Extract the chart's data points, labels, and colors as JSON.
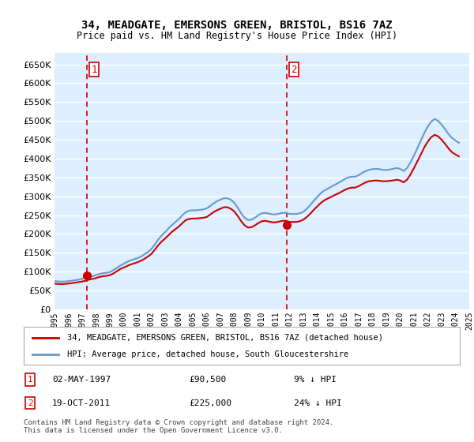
{
  "title": "34, MEADGATE, EMERSONS GREEN, BRISTOL, BS16 7AZ",
  "subtitle": "Price paid vs. HM Land Registry's House Price Index (HPI)",
  "ylabel_ticks": [
    "£0",
    "£50K",
    "£100K",
    "£150K",
    "£200K",
    "£250K",
    "£300K",
    "£350K",
    "£400K",
    "£450K",
    "£500K",
    "£550K",
    "£600K",
    "£650K"
  ],
  "ytick_values": [
    0,
    50000,
    100000,
    150000,
    200000,
    250000,
    300000,
    350000,
    400000,
    450000,
    500000,
    550000,
    600000,
    650000
  ],
  "ylim": [
    0,
    680000
  ],
  "sale1_year": 1997.33,
  "sale1_price": 90500,
  "sale1_label": "1",
  "sale2_year": 2011.8,
  "sale2_price": 225000,
  "sale2_label": "2",
  "legend_line1": "34, MEADGATE, EMERSONS GREEN, BRISTOL, BS16 7AZ (detached house)",
  "legend_line2": "HPI: Average price, detached house, South Gloucestershire",
  "table_row1": "1    02-MAY-1997         £90,500        9% ↓ HPI",
  "table_row2": "2    19-OCT-2011         £225,000      24% ↓ HPI",
  "footnote": "Contains HM Land Registry data © Crown copyright and database right 2024.\nThis data is licensed under the Open Government Licence v3.0.",
  "red_line_color": "#cc0000",
  "blue_line_color": "#6699cc",
  "background_color": "#ddeeff",
  "grid_color": "#ffffff",
  "hpi_data": {
    "years": [
      1995.0,
      1995.25,
      1995.5,
      1995.75,
      1996.0,
      1996.25,
      1996.5,
      1996.75,
      1997.0,
      1997.25,
      1997.5,
      1997.75,
      1998.0,
      1998.25,
      1998.5,
      1998.75,
      1999.0,
      1999.25,
      1999.5,
      1999.75,
      2000.0,
      2000.25,
      2000.5,
      2000.75,
      2001.0,
      2001.25,
      2001.5,
      2001.75,
      2002.0,
      2002.25,
      2002.5,
      2002.75,
      2003.0,
      2003.25,
      2003.5,
      2003.75,
      2004.0,
      2004.25,
      2004.5,
      2004.75,
      2005.0,
      2005.25,
      2005.5,
      2005.75,
      2006.0,
      2006.25,
      2006.5,
      2006.75,
      2007.0,
      2007.25,
      2007.5,
      2007.75,
      2008.0,
      2008.25,
      2008.5,
      2008.75,
      2009.0,
      2009.25,
      2009.5,
      2009.75,
      2010.0,
      2010.25,
      2010.5,
      2010.75,
      2011.0,
      2011.25,
      2011.5,
      2011.75,
      2012.0,
      2012.25,
      2012.5,
      2012.75,
      2013.0,
      2013.25,
      2013.5,
      2013.75,
      2014.0,
      2014.25,
      2014.5,
      2014.75,
      2015.0,
      2015.25,
      2015.5,
      2015.75,
      2016.0,
      2016.25,
      2016.5,
      2016.75,
      2017.0,
      2017.25,
      2017.5,
      2017.75,
      2018.0,
      2018.25,
      2018.5,
      2018.75,
      2019.0,
      2019.25,
      2019.5,
      2019.75,
      2020.0,
      2020.25,
      2020.5,
      2020.75,
      2021.0,
      2021.25,
      2021.5,
      2021.75,
      2022.0,
      2022.25,
      2022.5,
      2022.75,
      2023.0,
      2023.25,
      2023.5,
      2023.75,
      2024.0,
      2024.25
    ],
    "values": [
      75000,
      74000,
      73500,
      74000,
      75000,
      76000,
      77500,
      79000,
      81000,
      83000,
      86000,
      88000,
      91000,
      94000,
      96000,
      97000,
      99000,
      104000,
      110000,
      116000,
      121000,
      126000,
      130000,
      133000,
      136000,
      140000,
      146000,
      152000,
      160000,
      172000,
      185000,
      196000,
      205000,
      215000,
      224000,
      232000,
      240000,
      250000,
      258000,
      262000,
      263000,
      263000,
      264000,
      265000,
      268000,
      274000,
      281000,
      287000,
      291000,
      295000,
      295000,
      291000,
      283000,
      270000,
      255000,
      243000,
      237000,
      238000,
      243000,
      250000,
      255000,
      256000,
      254000,
      252000,
      252000,
      254000,
      256000,
      256000,
      253000,
      253000,
      253000,
      255000,
      259000,
      267000,
      277000,
      288000,
      298000,
      308000,
      315000,
      320000,
      325000,
      330000,
      335000,
      340000,
      346000,
      350000,
      352000,
      352000,
      356000,
      362000,
      367000,
      370000,
      372000,
      373000,
      372000,
      370000,
      370000,
      371000,
      373000,
      375000,
      373000,
      367000,
      375000,
      390000,
      408000,
      428000,
      448000,
      468000,
      485000,
      498000,
      505000,
      500000,
      490000,
      478000,
      465000,
      455000,
      448000,
      442000
    ]
  },
  "red_data": {
    "years": [
      1995.0,
      1995.25,
      1995.5,
      1995.75,
      1996.0,
      1996.25,
      1996.5,
      1996.75,
      1997.0,
      1997.25,
      1997.5,
      1997.75,
      1998.0,
      1998.25,
      1998.5,
      1998.75,
      1999.0,
      1999.25,
      1999.5,
      1999.75,
      2000.0,
      2000.25,
      2000.5,
      2000.75,
      2001.0,
      2001.25,
      2001.5,
      2001.75,
      2002.0,
      2002.25,
      2002.5,
      2002.75,
      2003.0,
      2003.25,
      2003.5,
      2003.75,
      2004.0,
      2004.25,
      2004.5,
      2004.75,
      2005.0,
      2005.25,
      2005.5,
      2005.75,
      2006.0,
      2006.25,
      2006.5,
      2006.75,
      2007.0,
      2007.25,
      2007.5,
      2007.75,
      2008.0,
      2008.25,
      2008.5,
      2008.75,
      2009.0,
      2009.25,
      2009.5,
      2009.75,
      2010.0,
      2010.25,
      2010.5,
      2010.75,
      2011.0,
      2011.25,
      2011.5,
      2011.75,
      2012.0,
      2012.25,
      2012.5,
      2012.75,
      2013.0,
      2013.25,
      2013.5,
      2013.75,
      2014.0,
      2014.25,
      2014.5,
      2014.75,
      2015.0,
      2015.25,
      2015.5,
      2015.75,
      2016.0,
      2016.25,
      2016.5,
      2016.75,
      2017.0,
      2017.25,
      2017.5,
      2017.75,
      2018.0,
      2018.25,
      2018.5,
      2018.75,
      2019.0,
      2019.25,
      2019.5,
      2019.75,
      2020.0,
      2020.25,
      2020.5,
      2020.75,
      2021.0,
      2021.25,
      2021.5,
      2021.75,
      2022.0,
      2022.25,
      2022.5,
      2022.75,
      2023.0,
      2023.25,
      2023.5,
      2023.75,
      2024.0,
      2024.25
    ],
    "values": [
      68000,
      67500,
      67000,
      67500,
      68500,
      69500,
      71000,
      72500,
      74000,
      76000,
      79000,
      81000,
      83000,
      86000,
      88000,
      89000,
      91000,
      95000,
      101000,
      107000,
      111000,
      115000,
      119000,
      122000,
      125000,
      129000,
      134000,
      140000,
      147000,
      158000,
      170000,
      180000,
      188000,
      197000,
      206000,
      213000,
      220000,
      229000,
      237000,
      240000,
      241000,
      241000,
      242000,
      243000,
      245000,
      251000,
      258000,
      263000,
      267000,
      271000,
      271000,
      267000,
      260000,
      248000,
      234000,
      223000,
      217000,
      218000,
      223000,
      229000,
      234000,
      235000,
      233000,
      231000,
      231000,
      233000,
      235000,
      235000,
      232000,
      232000,
      232000,
      234000,
      238000,
      245000,
      254000,
      264000,
      273000,
      282000,
      289000,
      294000,
      298000,
      303000,
      307000,
      312000,
      317000,
      321000,
      323000,
      323000,
      327000,
      332000,
      337000,
      340000,
      341000,
      342000,
      341000,
      340000,
      340000,
      341000,
      342000,
      344000,
      342000,
      337000,
      344000,
      358000,
      375000,
      393000,
      411000,
      430000,
      445000,
      457000,
      463000,
      459000,
      450000,
      439000,
      427000,
      417000,
      411000,
      406000
    ]
  },
  "xtick_years": [
    1995,
    1996,
    1997,
    1998,
    1999,
    2000,
    2001,
    2002,
    2003,
    2004,
    2005,
    2006,
    2007,
    2008,
    2009,
    2010,
    2011,
    2012,
    2013,
    2014,
    2015,
    2016,
    2017,
    2018,
    2019,
    2020,
    2021,
    2022,
    2023,
    2024,
    2025
  ]
}
